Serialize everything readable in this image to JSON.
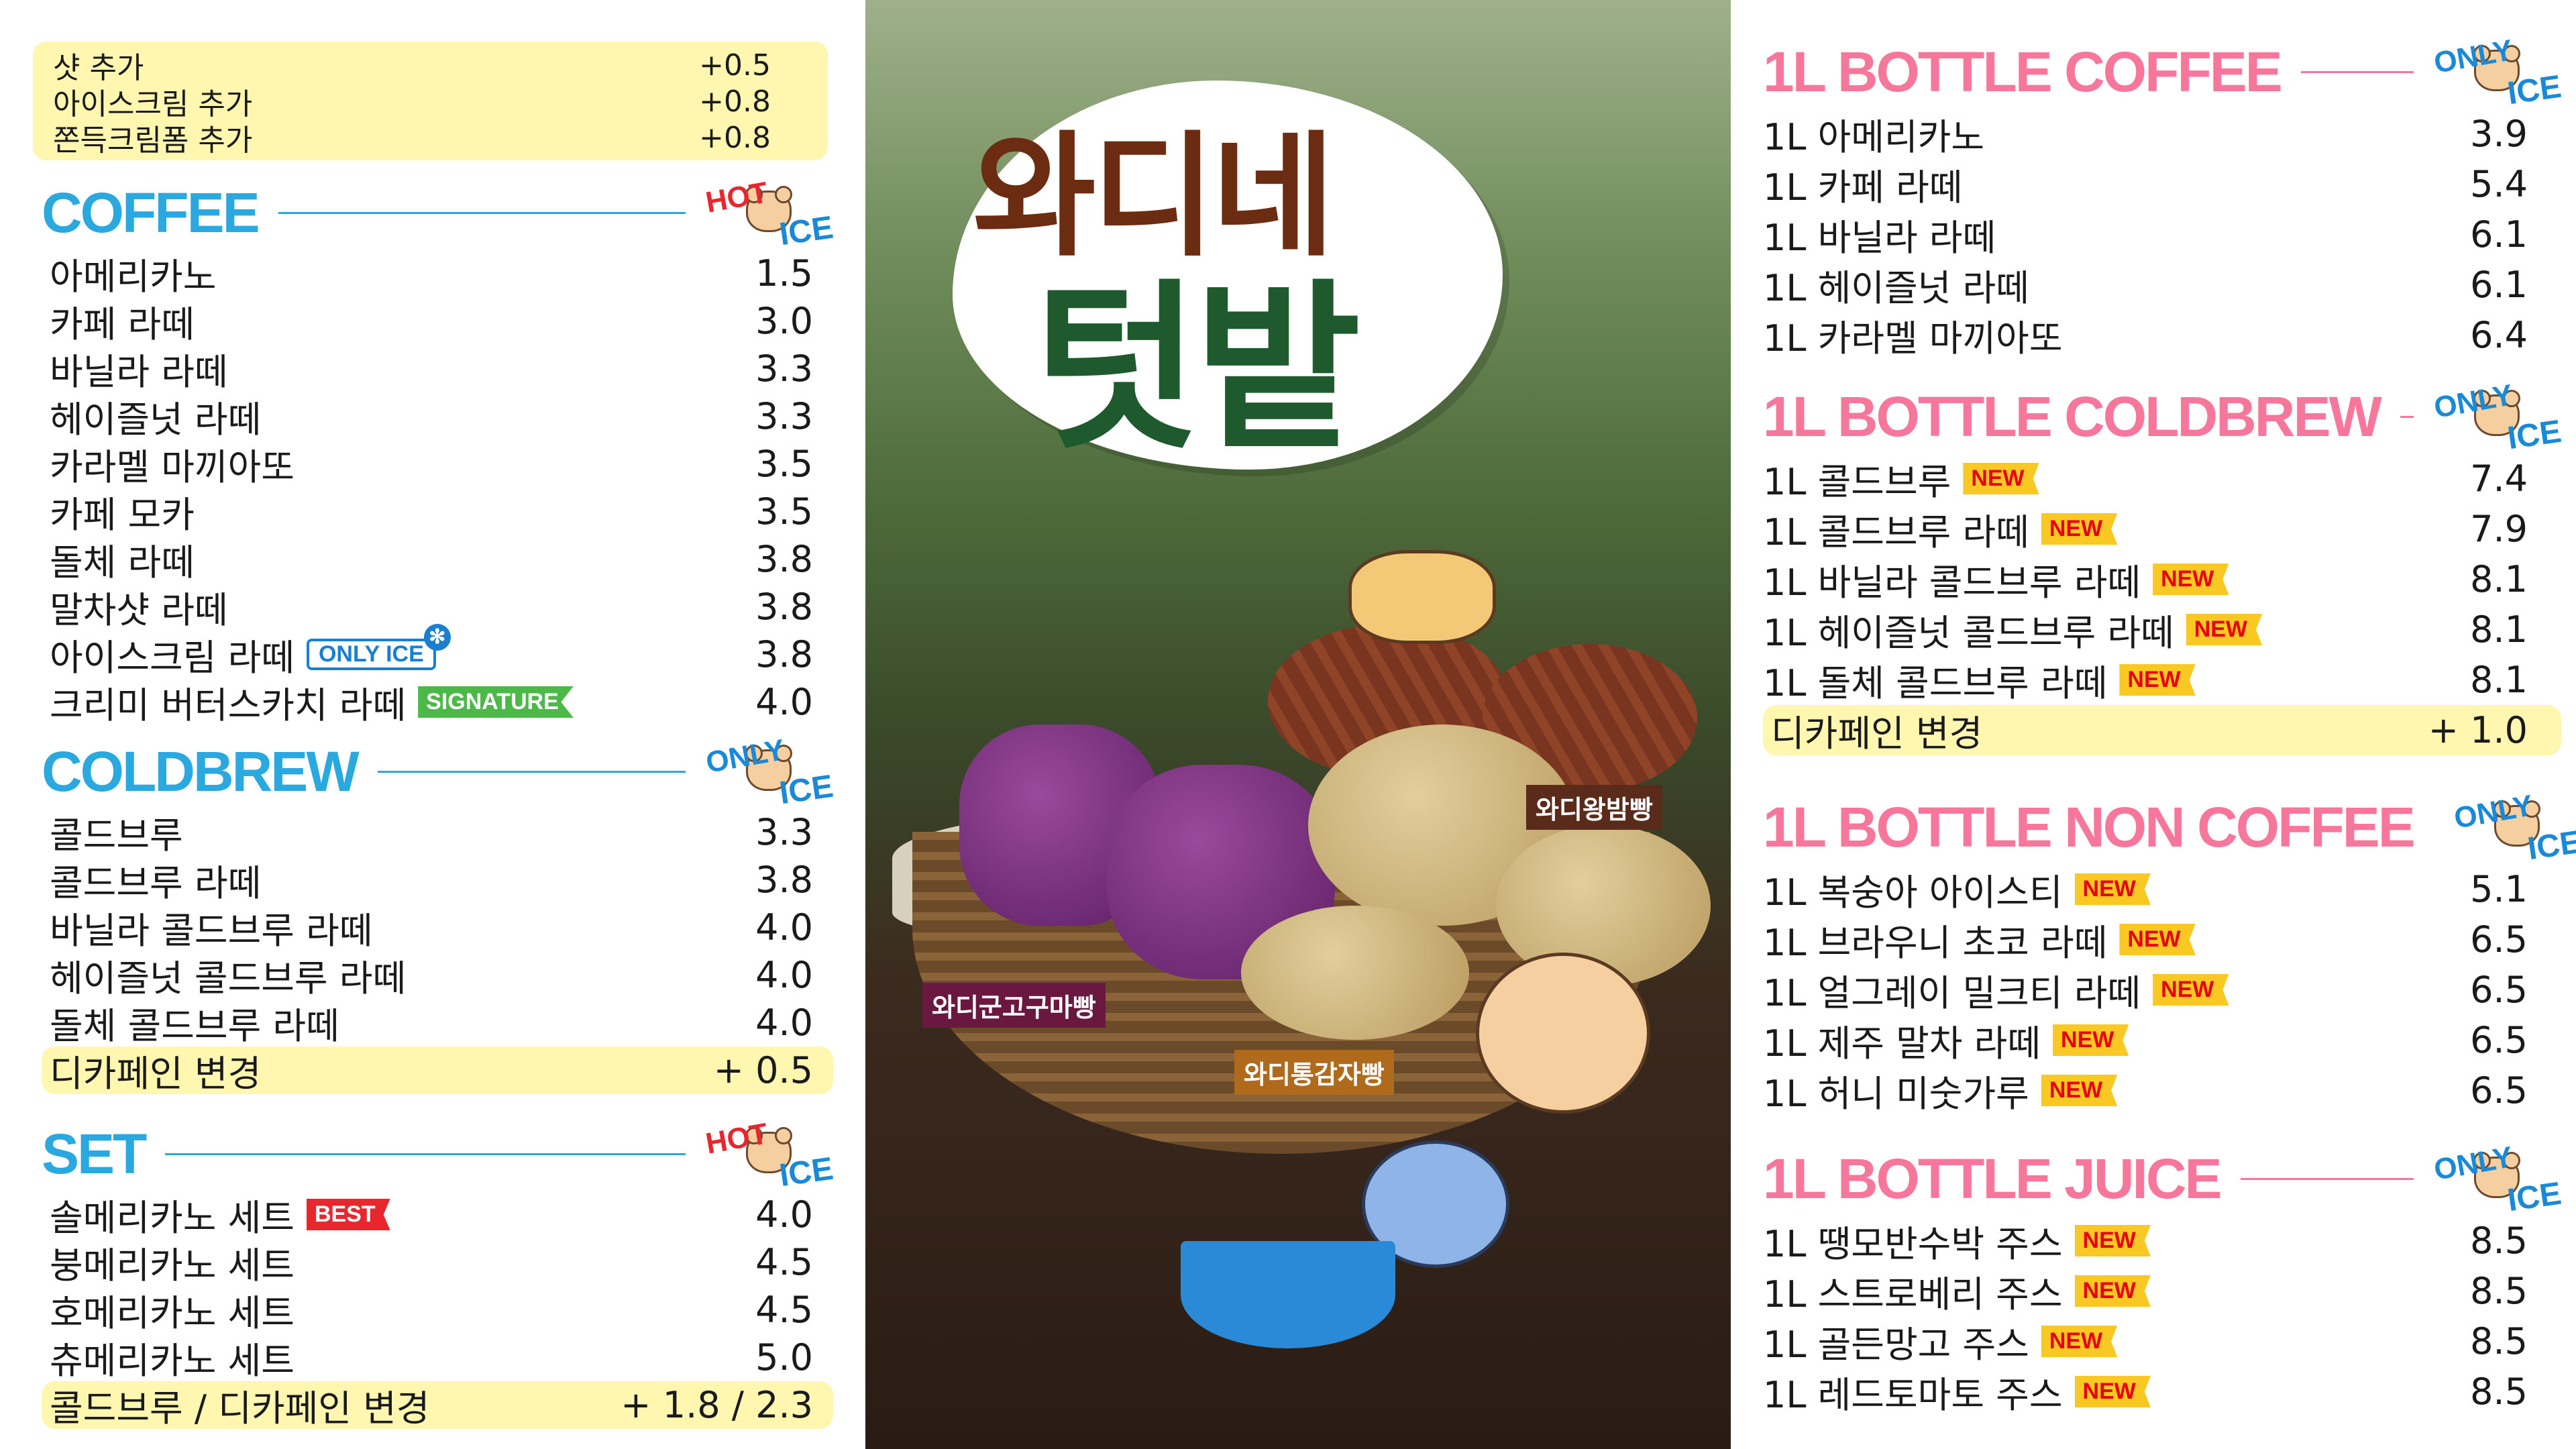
{
  "colors": {
    "coffee_header": "#2aa8e0",
    "bottle_header": "#f7769b",
    "highlight": "#fff6b0",
    "new_badge": "#f9c823",
    "new_text": "#e60012",
    "signature": "#4cb848",
    "best": "#e8262d",
    "hot": "#e8262d",
    "ice": "#1a8ad8"
  },
  "addons": [
    {
      "name": "샷 추가",
      "price": "+0.5"
    },
    {
      "name": "아이스크림 추가",
      "price": "+0.8"
    },
    {
      "name": "쫀득크림폼 추가",
      "price": "+0.8"
    }
  ],
  "left_sections": [
    {
      "title": "COFFEE",
      "stamp": {
        "top": "HOT",
        "bottom": "ICE"
      },
      "items": [
        {
          "name": "아메리카노",
          "price": "1.5"
        },
        {
          "name": "카페 라떼",
          "price": "3.0"
        },
        {
          "name": "바닐라 라떼",
          "price": "3.3"
        },
        {
          "name": "헤이즐넛 라떼",
          "price": "3.3"
        },
        {
          "name": "카라멜 마끼아또",
          "price": "3.5"
        },
        {
          "name": "카페 모카",
          "price": "3.5"
        },
        {
          "name": "돌체 라떼",
          "price": "3.8"
        },
        {
          "name": "말차샷 라떼",
          "price": "3.8"
        },
        {
          "name": "아이스크림 라떼",
          "price": "3.8",
          "badge": "ONLY ICE",
          "badge_type": "only"
        },
        {
          "name": "크리미 버터스카치 라떼",
          "price": "4.0",
          "badge": "SIGNATURE",
          "badge_type": "sig"
        }
      ]
    },
    {
      "title": "COLDBREW",
      "stamp": {
        "top": "ONLY",
        "bottom": "ICE"
      },
      "items": [
        {
          "name": "콜드브루",
          "price": "3.3"
        },
        {
          "name": "콜드브루 라떼",
          "price": "3.8"
        },
        {
          "name": "바닐라 콜드브루 라떼",
          "price": "4.0"
        },
        {
          "name": "헤이즐넛 콜드브루 라떼",
          "price": "4.0"
        },
        {
          "name": "돌체 콜드브루 라떼",
          "price": "4.0"
        },
        {
          "name": "디카페인 변경",
          "price": "+ 0.5",
          "highlight": true
        }
      ]
    },
    {
      "title": "SET",
      "stamp": {
        "top": "HOT",
        "bottom": "ICE"
      },
      "items": [
        {
          "name": "솔메리카노 세트",
          "price": "4.0",
          "badge": "BEST",
          "badge_type": "best"
        },
        {
          "name": "붕메리카노 세트",
          "price": "4.5"
        },
        {
          "name": "호메리카노 세트",
          "price": "4.5"
        },
        {
          "name": "츄메리카노 세트",
          "price": "5.0"
        },
        {
          "name": "콜드브루 / 디카페인 변경",
          "price": "+ 1.8 / 2.3",
          "highlight": true
        }
      ]
    }
  ],
  "promo": {
    "title_line1": "와디네",
    "title_line2": "텃밭",
    "labels": [
      "와디왕밤빵",
      "와디군고구마빵",
      "와디통감자빵"
    ]
  },
  "right_sections": [
    {
      "title": "1L BOTTLE COFFEE",
      "stamp": {
        "top": "ONLY",
        "bottom": "ICE"
      },
      "items": [
        {
          "name": "1L 아메리카노",
          "price": "3.9"
        },
        {
          "name": "1L 카페 라떼",
          "price": "5.4"
        },
        {
          "name": "1L 바닐라 라떼",
          "price": "6.1"
        },
        {
          "name": "1L 헤이즐넛 라떼",
          "price": "6.1"
        },
        {
          "name": "1L 카라멜 마끼아또",
          "price": "6.4"
        }
      ]
    },
    {
      "title": "1L BOTTLE COLDBREW",
      "stamp": {
        "top": "ONLY",
        "bottom": "ICE"
      },
      "items": [
        {
          "name": "1L 콜드브루",
          "price": "7.4",
          "badge": "NEW",
          "badge_type": "new"
        },
        {
          "name": "1L 콜드브루 라떼",
          "price": "7.9",
          "badge": "NEW",
          "badge_type": "new"
        },
        {
          "name": "1L 바닐라 콜드브루 라떼",
          "price": "8.1",
          "badge": "NEW",
          "badge_type": "new"
        },
        {
          "name": "1L 헤이즐넛 콜드브루 라떼",
          "price": "8.1",
          "badge": "NEW",
          "badge_type": "new"
        },
        {
          "name": "1L 돌체 콜드브루 라떼",
          "price": "8.1",
          "badge": "NEW",
          "badge_type": "new"
        },
        {
          "name": "디카페인 변경",
          "price": "+ 1.0",
          "highlight": true
        }
      ]
    },
    {
      "title": "1L BOTTLE NON COFFEE",
      "stamp": {
        "top": "ONLY",
        "bottom": "ICE"
      },
      "items": [
        {
          "name": "1L 복숭아 아이스티",
          "price": "5.1",
          "badge": "NEW",
          "badge_type": "new"
        },
        {
          "name": "1L 브라우니 초코 라떼",
          "price": "6.5",
          "badge": "NEW",
          "badge_type": "new"
        },
        {
          "name": "1L 얼그레이 밀크티 라떼",
          "price": "6.5",
          "badge": "NEW",
          "badge_type": "new"
        },
        {
          "name": "1L 제주 말차 라떼",
          "price": "6.5",
          "badge": "NEW",
          "badge_type": "new"
        },
        {
          "name": "1L 허니 미숫가루",
          "price": "6.5",
          "badge": "NEW",
          "badge_type": "new"
        }
      ]
    },
    {
      "title": "1L BOTTLE JUICE",
      "stamp": {
        "top": "ONLY",
        "bottom": "ICE"
      },
      "items": [
        {
          "name": "1L 땡모반수박 주스",
          "price": "8.5",
          "badge": "NEW",
          "badge_type": "new"
        },
        {
          "name": "1L 스트로베리 주스",
          "price": "8.5",
          "badge": "NEW",
          "badge_type": "new"
        },
        {
          "name": "1L 골든망고 주스",
          "price": "8.5",
          "badge": "NEW",
          "badge_type": "new"
        },
        {
          "name": "1L 레드토마토 주스",
          "price": "8.5",
          "badge": "NEW",
          "badge_type": "new"
        }
      ]
    }
  ]
}
